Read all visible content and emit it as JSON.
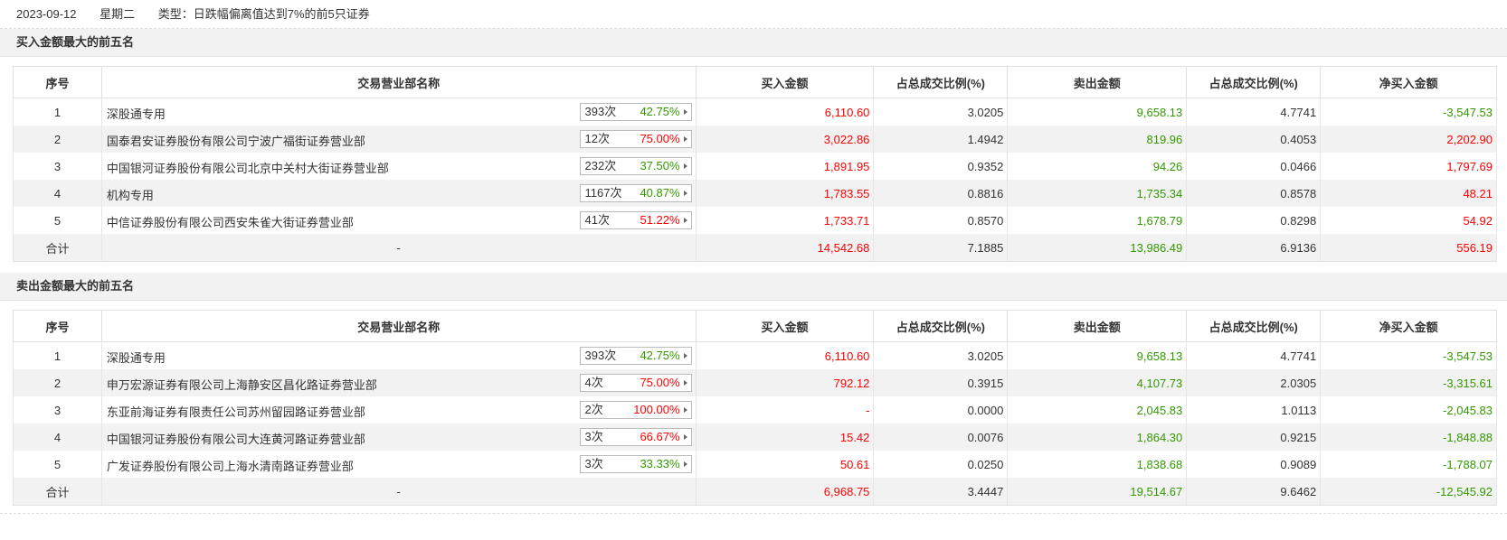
{
  "header": {
    "date": "2023-09-12",
    "weekday": "星期二",
    "type_text": "类型：日跌幅偏离值达到7%的前5只证券"
  },
  "columns": [
    "序号",
    "交易营业部名称",
    "买入金额",
    "占总成交比例(%)",
    "卖出金额",
    "占总成交比例(%)",
    "净买入金额"
  ],
  "colors": {
    "red": "#ff0000",
    "green": "#339900"
  },
  "buy_section": {
    "title": "买入金额最大的前五名",
    "rows": [
      {
        "idx": "1",
        "name": "深股通专用",
        "count": "393次",
        "pct": "42.75%",
        "pct_color": "green",
        "buy": "6,110.60",
        "buy_ratio": "3.0205",
        "sell": "9,658.13",
        "sell_ratio": "4.7741",
        "net": "-3,547.53"
      },
      {
        "idx": "2",
        "name": "国泰君安证券股份有限公司宁波广福街证券营业部",
        "count": "12次",
        "pct": "75.00%",
        "pct_color": "red",
        "buy": "3,022.86",
        "buy_ratio": "1.4942",
        "sell": "819.96",
        "sell_ratio": "0.4053",
        "net": "2,202.90"
      },
      {
        "idx": "3",
        "name": "中国银河证券股份有限公司北京中关村大街证券营业部",
        "count": "232次",
        "pct": "37.50%",
        "pct_color": "green",
        "buy": "1,891.95",
        "buy_ratio": "0.9352",
        "sell": "94.26",
        "sell_ratio": "0.0466",
        "net": "1,797.69"
      },
      {
        "idx": "4",
        "name": "机构专用",
        "count": "1167次",
        "pct": "40.87%",
        "pct_color": "green",
        "buy": "1,783.55",
        "buy_ratio": "0.8816",
        "sell": "1,735.34",
        "sell_ratio": "0.8578",
        "net": "48.21"
      },
      {
        "idx": "5",
        "name": "中信证券股份有限公司西安朱雀大街证券营业部",
        "count": "41次",
        "pct": "51.22%",
        "pct_color": "red",
        "buy": "1,733.71",
        "buy_ratio": "0.8570",
        "sell": "1,678.79",
        "sell_ratio": "0.8298",
        "net": "54.92"
      }
    ],
    "total": {
      "label": "合计",
      "name": "-",
      "buy": "14,542.68",
      "buy_ratio": "7.1885",
      "sell": "13,986.49",
      "sell_ratio": "6.9136",
      "net": "556.19"
    }
  },
  "sell_section": {
    "title": "卖出金额最大的前五名",
    "rows": [
      {
        "idx": "1",
        "name": "深股通专用",
        "count": "393次",
        "pct": "42.75%",
        "pct_color": "green",
        "buy": "6,110.60",
        "buy_ratio": "3.0205",
        "sell": "9,658.13",
        "sell_ratio": "4.7741",
        "net": "-3,547.53"
      },
      {
        "idx": "2",
        "name": "申万宏源证券有限公司上海静安区昌化路证券营业部",
        "count": "4次",
        "pct": "75.00%",
        "pct_color": "red",
        "buy": "792.12",
        "buy_ratio": "0.3915",
        "sell": "4,107.73",
        "sell_ratio": "2.0305",
        "net": "-3,315.61"
      },
      {
        "idx": "3",
        "name": "东亚前海证券有限责任公司苏州留园路证券营业部",
        "count": "2次",
        "pct": "100.00%",
        "pct_color": "red",
        "buy": "-",
        "buy_ratio": "0.0000",
        "sell": "2,045.83",
        "sell_ratio": "1.0113",
        "net": "-2,045.83"
      },
      {
        "idx": "4",
        "name": "中国银河证券股份有限公司大连黄河路证券营业部",
        "count": "3次",
        "pct": "66.67%",
        "pct_color": "red",
        "buy": "15.42",
        "buy_ratio": "0.0076",
        "sell": "1,864.30",
        "sell_ratio": "0.9215",
        "net": "-1,848.88"
      },
      {
        "idx": "5",
        "name": "广发证券股份有限公司上海水清南路证券营业部",
        "count": "3次",
        "pct": "33.33%",
        "pct_color": "green",
        "buy": "50.61",
        "buy_ratio": "0.0250",
        "sell": "1,838.68",
        "sell_ratio": "0.9089",
        "net": "-1,788.07"
      }
    ],
    "total": {
      "label": "合计",
      "name": "-",
      "buy": "6,968.75",
      "buy_ratio": "3.4447",
      "sell": "19,514.67",
      "sell_ratio": "9.6462",
      "net": "-12,545.92"
    }
  }
}
